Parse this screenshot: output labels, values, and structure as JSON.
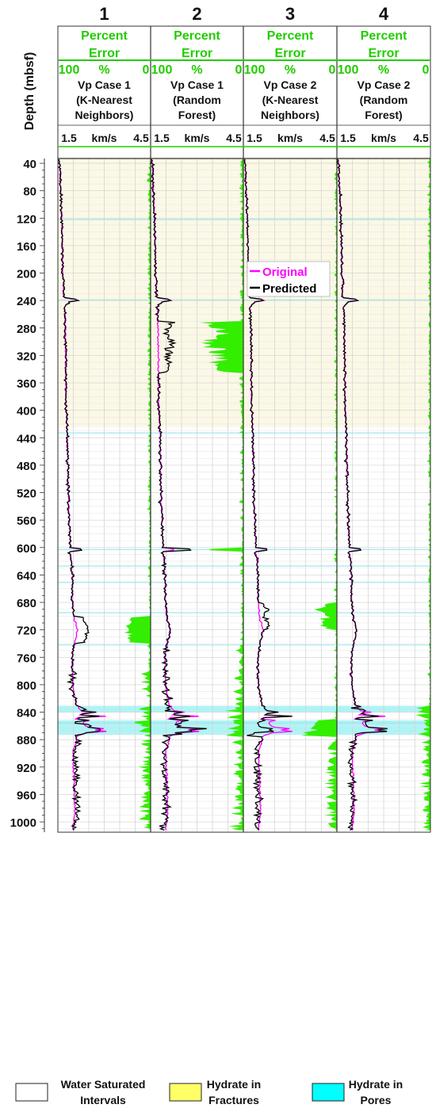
{
  "chart_data": {
    "type": "line",
    "y_axis": {
      "label": "Depth (mbsf)",
      "range": [
        33,
        1015
      ],
      "inverted": true,
      "ticks": [
        40,
        80,
        120,
        160,
        200,
        240,
        280,
        320,
        360,
        400,
        440,
        480,
        520,
        560,
        600,
        640,
        680,
        720,
        760,
        800,
        840,
        880,
        920,
        960,
        1000
      ]
    },
    "tracks": [
      {
        "number": "1",
        "error_label": "Percent Error",
        "error_scale": [
          "100",
          "%",
          "0"
        ],
        "title": [
          "Vp Case 1",
          "(K-Nearest",
          "Neighbors)"
        ],
        "vel_scale": [
          "1.5",
          "km/s",
          "4.5"
        ]
      },
      {
        "number": "2",
        "error_label": "Percent Error",
        "error_scale": [
          "100",
          "%",
          "0"
        ],
        "title": [
          "Vp Case 1",
          "(Random",
          "Forest)"
        ],
        "vel_scale": [
          "1.5",
          "km/s",
          "4.5"
        ]
      },
      {
        "number": "3",
        "error_label": "Percent Error",
        "error_scale": [
          "100",
          "%",
          "0"
        ],
        "title": [
          "Vp Case 2",
          "(K-Nearest",
          "Neighbors)"
        ],
        "vel_scale": [
          "1.5",
          "km/s",
          "4.5"
        ]
      },
      {
        "number": "4",
        "error_label": "Percent Error",
        "error_scale": [
          "100",
          "%",
          "0"
        ],
        "title": [
          "Vp Case 2",
          "(Random",
          "Forest)"
        ],
        "vel_scale": [
          "1.5",
          "km/s",
          "4.5"
        ]
      }
    ],
    "velocity_range_kms": [
      1.5,
      4.5
    ],
    "error_range_percent": [
      100,
      0
    ],
    "series": [
      {
        "name": "Original",
        "color": "#ff00ff"
      },
      {
        "name": "Predicted",
        "color": "#000000"
      }
    ],
    "error_fill_color": "#33ee00",
    "original_profile": {
      "depth_mbsf": [
        40,
        120,
        200,
        235,
        240,
        250,
        280,
        320,
        360,
        400,
        430,
        480,
        520,
        560,
        600,
        605,
        620,
        640,
        680,
        700,
        720,
        740,
        760,
        800,
        830,
        840,
        850,
        860,
        866,
        875,
        900,
        940,
        980,
        1010
      ],
      "vp_kms": [
        1.56,
        1.62,
        1.66,
        1.7,
        1.9,
        1.72,
        1.74,
        1.75,
        1.75,
        1.77,
        1.8,
        1.82,
        1.84,
        1.86,
        1.9,
        1.88,
        1.94,
        1.96,
        1.98,
        2.0,
        2.15,
        2.05,
        1.96,
        1.98,
        2.1,
        2.3,
        2.1,
        2.4,
        2.7,
        2.1,
        2.0,
        2.02,
        2.05,
        2.0
      ]
    },
    "hydrate_intervals": {
      "fractures_mbsf": [
        [
          40,
          425
        ]
      ],
      "pores_mbsf": [
        [
          831,
          840
        ],
        [
          852,
          873
        ]
      ],
      "lines_mbsf": [
        122,
        239,
        433,
        603,
        627,
        651,
        695,
        742,
        856
      ]
    },
    "legend": {
      "placement": "inside-top-of-track-3"
    },
    "bottom_legend": [
      {
        "label": [
          "Water Saturated",
          "Intervals"
        ],
        "color": "#ffffff"
      },
      {
        "label": [
          "Hydrate in",
          "Fractures"
        ],
        "color": "#ffff66"
      },
      {
        "label": [
          "Hydrate in",
          "Pores"
        ],
        "color": "#00ffff"
      }
    ]
  }
}
